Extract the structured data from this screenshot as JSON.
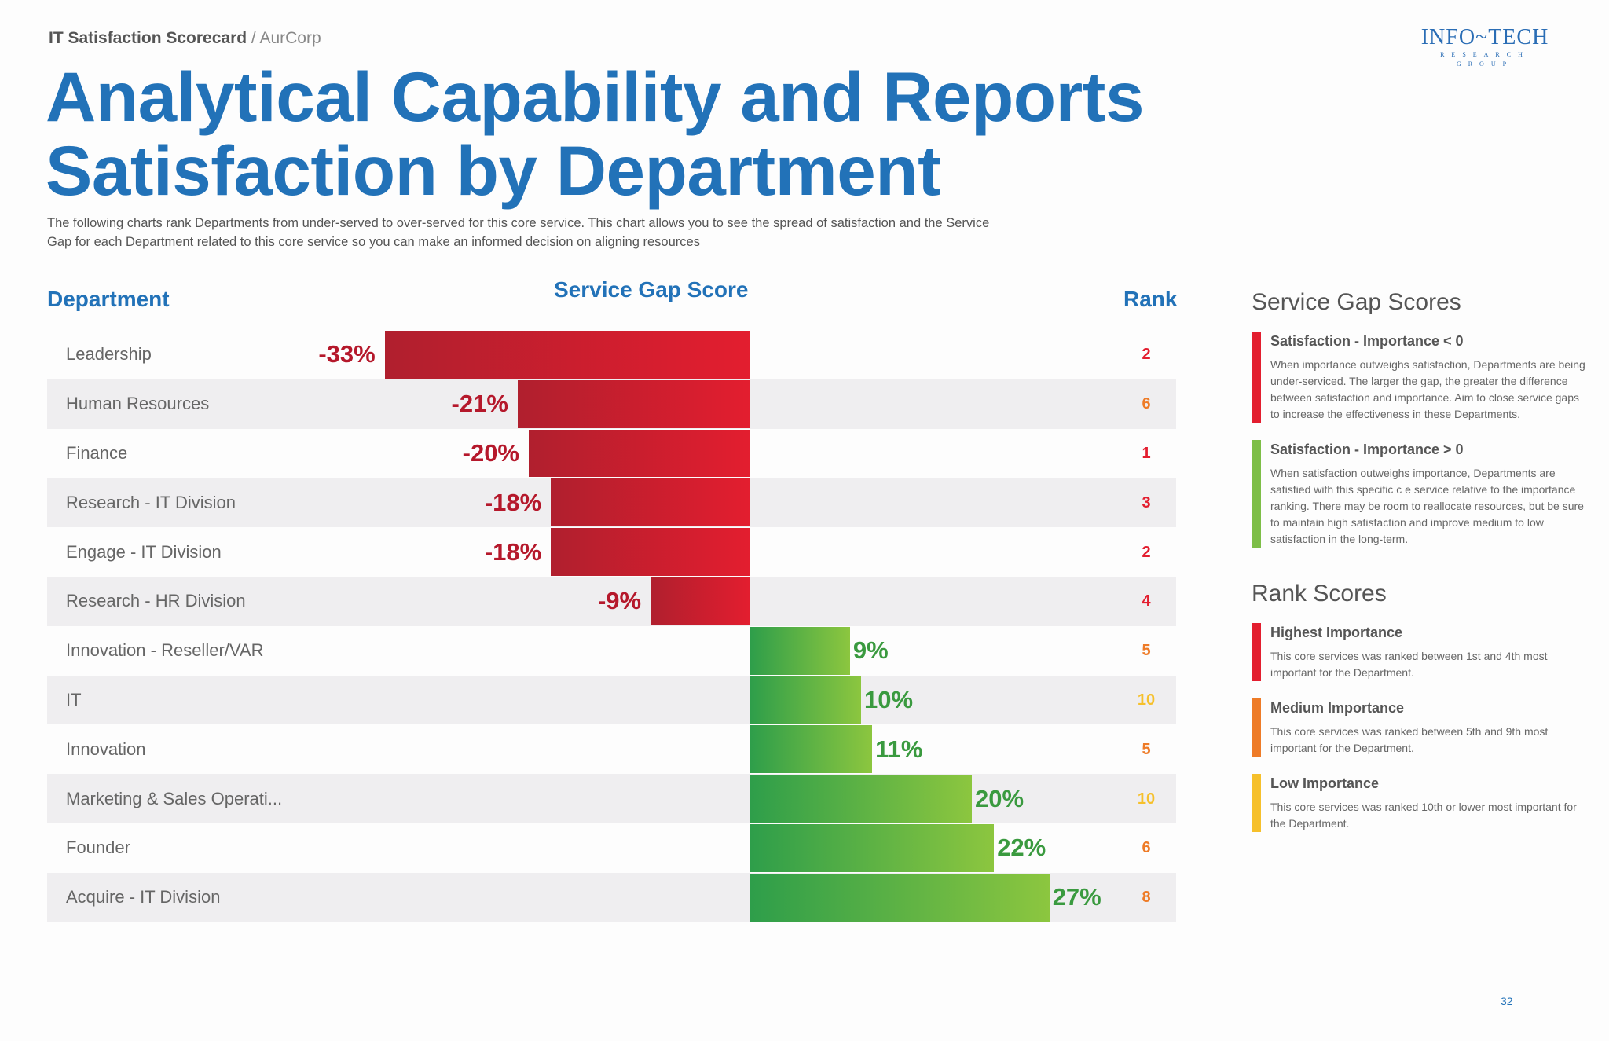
{
  "header": {
    "breadcrumb_main": "IT Satisfaction Scorecard",
    "breadcrumb_sep": " / ",
    "breadcrumb_sub": "AurCorp"
  },
  "logo": {
    "line1": "INFO~TECH",
    "line2": "RESEARCH GROUP"
  },
  "title": {
    "line1": "Analytical Capability and Reports",
    "line2": "Satisfaction by Department"
  },
  "description": "The following charts rank Departments from under-served to over-served for this core service. This chart allows you to see the spread of satisfaction and the Service Gap for each Department related to this core service so you can make an informed decision on aligning resources",
  "colors": {
    "negative": "#e31e2f",
    "negative_dark": "#b01f2e",
    "positive_light": "#8cc63f",
    "positive_dark": "#2e9e4a",
    "rank_high": "#e31e2f",
    "rank_medium": "#ee7b27",
    "rank_low": "#f6c02b",
    "title": "#2272b8"
  },
  "chart_data": {
    "type": "bar",
    "orientation": "horizontal",
    "columns": {
      "department": "Department",
      "score": "Service Gap Score",
      "rank": "Rank"
    },
    "unit": "%",
    "categories": [
      "Leadership",
      "Human Resources",
      "Finance",
      "Research - IT Division",
      "Engage - IT Division",
      "Research - HR Division",
      "Innovation - Reseller/VAR",
      "IT",
      "Innovation",
      "Marketing & Sales Operati...",
      "Founder",
      "Acquire - IT Division"
    ],
    "values": [
      -33,
      -21,
      -20,
      -18,
      -18,
      -9,
      9,
      10,
      11,
      20,
      22,
      27
    ],
    "labels": [
      "-33%",
      "-21%",
      "-20%",
      "-18%",
      "-18%",
      "-9%",
      "9%",
      "10%",
      "11%",
      "20%",
      "22%",
      "27%"
    ],
    "ranks": [
      "2",
      "6",
      "1",
      "3",
      "2",
      "4",
      "5",
      "10",
      "5",
      "10",
      "6",
      "8"
    ],
    "rank_levels": [
      "high",
      "medium",
      "high",
      "high",
      "high",
      "high",
      "medium",
      "low",
      "medium",
      "low",
      "medium",
      "medium"
    ]
  },
  "service_gap_legend": {
    "title": "Service Gap Scores",
    "items": [
      {
        "label": "Satisfaction - Importance < 0",
        "text": "When importance outweighs satisfaction, Departments are being under-serviced. The larger the gap, the greater the difference between satisfaction and importance. Aim to close service gaps to increase the effectiveness in these Departments.",
        "color": "#e31e2f"
      },
      {
        "label": "Satisfaction - Importance > 0",
        "text": "When satisfaction outweighs importance, Departments are satisfied with this specific c   e service relative to the importance ranking. There may be room to reallocate resources, but be sure to maintain high satisfaction and improve medium to low satisfaction in the long-term.",
        "color": "#7dbe47"
      }
    ]
  },
  "rank_legend": {
    "title": "Rank Scores",
    "items": [
      {
        "label": "Highest Importance",
        "text": "This core services was ranked between 1st and 4th most important for the Department.",
        "color": "#e31e2f"
      },
      {
        "label": "Medium Importance",
        "text": "This core services was ranked between 5th and 9th most important for the Department.",
        "color": "#ee7b27"
      },
      {
        "label": "Low Importance",
        "text": "This core services was ranked 10th or lower most important for the Department.",
        "color": "#f6c02b"
      }
    ]
  },
  "page_number": "32"
}
